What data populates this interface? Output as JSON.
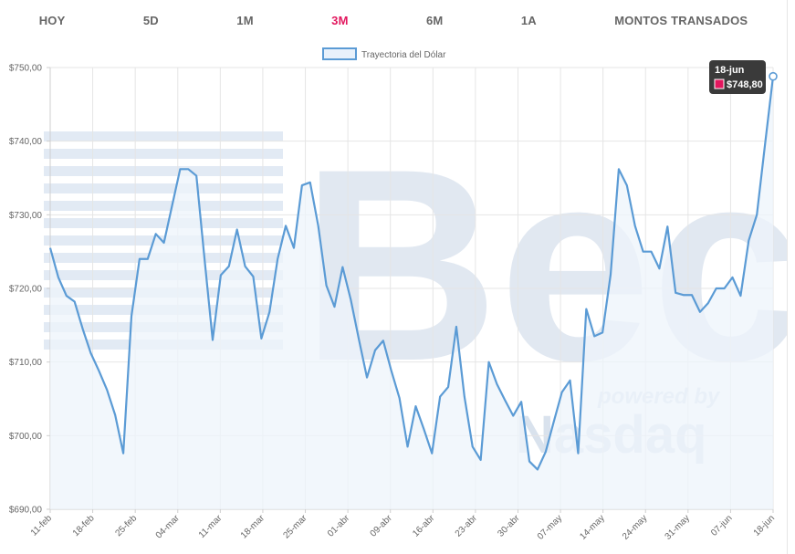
{
  "tabs": [
    {
      "label": "HOY",
      "active": false
    },
    {
      "label": "5D",
      "active": false
    },
    {
      "label": "1M",
      "active": false
    },
    {
      "label": "3M",
      "active": true
    },
    {
      "label": "6M",
      "active": false
    },
    {
      "label": "1A",
      "active": false
    },
    {
      "label": "MONTOS TRANSADOS",
      "active": false
    }
  ],
  "watermark": {
    "brand": "Bec",
    "powered": "powered by",
    "partner": "Nasdaq"
  },
  "colors": {
    "line": "#5b9bd5",
    "fill": "#eef4fb",
    "accent": "#e2175e",
    "tooltip_bg": "#3a3a3a",
    "grid": "#e5e5e5"
  },
  "tooltip": {
    "date": "18-jun",
    "value": "$748,80"
  },
  "chart_data": {
    "type": "line",
    "legend": "Trayectoria del Dólar",
    "legend_position": "top-center",
    "grid": true,
    "ylim": [
      690,
      750
    ],
    "yticks": [
      "$690,00",
      "$700,00",
      "$710,00",
      "$720,00",
      "$730,00",
      "$740,00",
      "$750,00"
    ],
    "xtick_labels": [
      "11-feb",
      "18-feb",
      "25-feb",
      "04-mar",
      "11-mar",
      "18-mar",
      "25-mar",
      "01-abr",
      "09-abr",
      "16-abr",
      "23-abr",
      "30-abr",
      "07-may",
      "14-may",
      "24-may",
      "31-may",
      "07-jun",
      "18-jun"
    ],
    "series": [
      {
        "values": [
          725.5,
          721.5,
          719,
          718.2,
          714.5,
          711.2,
          708.8,
          706.2,
          702.8,
          697.6,
          716.2,
          724,
          724,
          727.4,
          726.2,
          731.2,
          736.2,
          736.2,
          735.3,
          724,
          713,
          721.8,
          723,
          728,
          723,
          721.6,
          713.2,
          716.8,
          724,
          728.5,
          725.5,
          734,
          734.4,
          728.5,
          720.4,
          717.5,
          722.9,
          718.5,
          713.1,
          707.9,
          711.6,
          712.9,
          708.8,
          705.1,
          698.5,
          704,
          700.9,
          697.6,
          705.3,
          706.6,
          714.8,
          705.3,
          698.5,
          696.7,
          710,
          707,
          704.8,
          702.7,
          704.6,
          696.5,
          695.4,
          697.8,
          701.9,
          705.9,
          707.5,
          697.6,
          717.2,
          713.5,
          714,
          721.9,
          736.2,
          734,
          728.5,
          725,
          725,
          722.7,
          728.4,
          719.4,
          719.1,
          719.1,
          716.8,
          718,
          720,
          720,
          721.5,
          719,
          726.5,
          730,
          739.5,
          748.8
        ]
      }
    ]
  }
}
